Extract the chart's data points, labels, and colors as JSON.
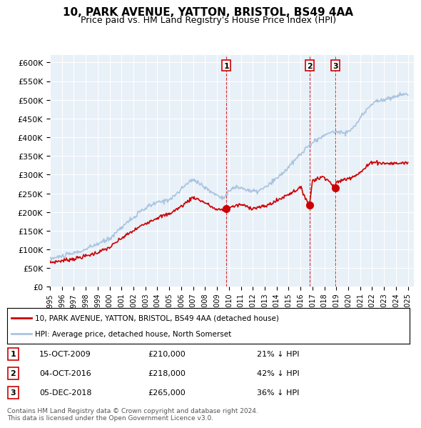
{
  "title": "10, PARK AVENUE, YATTON, BRISTOL, BS49 4AA",
  "subtitle": "Price paid vs. HM Land Registry's House Price Index (HPI)",
  "ylim": [
    0,
    620000
  ],
  "yticks": [
    0,
    50000,
    100000,
    150000,
    200000,
    250000,
    300000,
    350000,
    400000,
    450000,
    500000,
    550000,
    600000
  ],
  "hpi_color": "#a8c4e0",
  "price_color": "#cc0000",
  "transaction_color": "#cc0000",
  "vline_color": "#cc0000",
  "background_chart": "#e8f0f8",
  "transactions": [
    {
      "date_num": 2009.79,
      "price": 210000,
      "label": "1"
    },
    {
      "date_num": 2016.75,
      "price": 218000,
      "label": "2"
    },
    {
      "date_num": 2018.92,
      "price": 265000,
      "label": "3"
    }
  ],
  "legend_label_price": "10, PARK AVENUE, YATTON, BRISTOL, BS49 4AA (detached house)",
  "legend_label_hpi": "HPI: Average price, detached house, North Somerset",
  "table_rows": [
    {
      "num": "1",
      "date": "15-OCT-2009",
      "price": "£210,000",
      "pct": "21% ↓ HPI"
    },
    {
      "num": "2",
      "date": "04-OCT-2016",
      "price": "£218,000",
      "pct": "42% ↓ HPI"
    },
    {
      "num": "3",
      "date": "05-DEC-2018",
      "price": "£265,000",
      "pct": "36% ↓ HPI"
    }
  ],
  "footer": "Contains HM Land Registry data © Crown copyright and database right 2024.\nThis data is licensed under the Open Government Licence v3.0."
}
